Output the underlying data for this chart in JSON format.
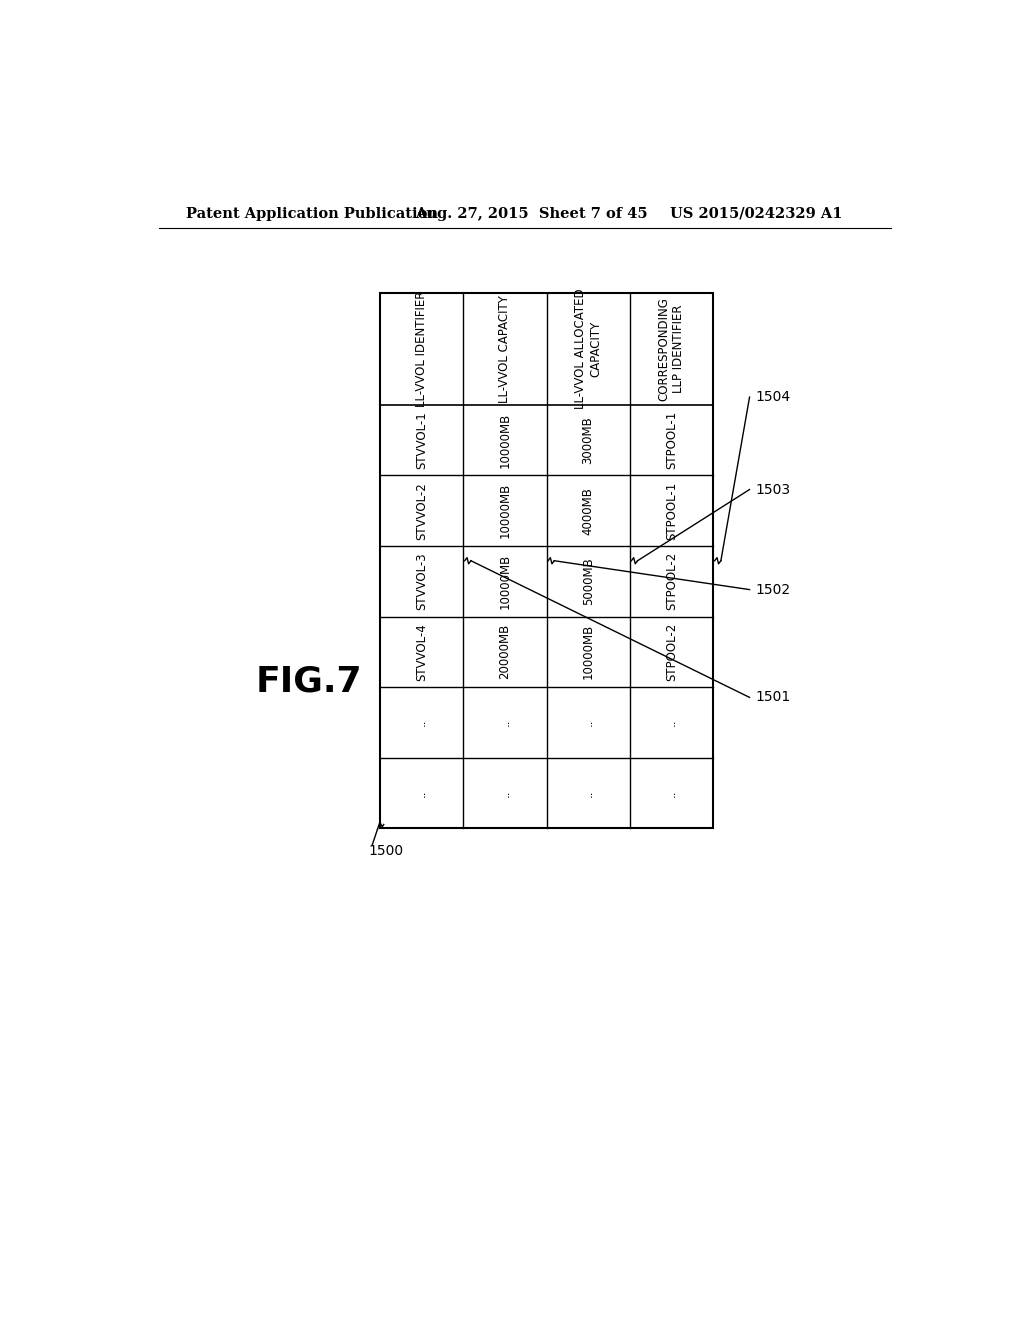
{
  "fig_label": "FIG.7",
  "header_line1": "Patent Application Publication",
  "header_line2": "Aug. 27, 2015  Sheet 7 of 45",
  "header_line3": "US 2015/0242329 A1",
  "col_headers": [
    "LL-VVOL IDENTIFIER",
    "LL-VVOL CAPACITY",
    "LL-VVOL ALLOCATED\nCAPACITY",
    "CORRESPONDING\nLLP IDENTIFIER"
  ],
  "rows": [
    [
      "STVVOL-1",
      "10000MB",
      "3000MB",
      "STPOOL-1"
    ],
    [
      "STVVOL-2",
      "10000MB",
      "4000MB",
      "STPOOL-1"
    ],
    [
      "STVVOL-3",
      "10000MB",
      "5000MB",
      "STPOOL-2"
    ],
    [
      "STVVOL-4",
      "20000MB",
      "10000MB",
      "STPOOL-2"
    ],
    [
      "..",
      "..",
      "..",
      ".."
    ],
    [
      "..",
      "..",
      "..",
      ".."
    ]
  ],
  "col_labels": [
    "1501",
    "1502",
    "1503",
    "1504"
  ],
  "table_label": "1500",
  "background_color": "#ffffff",
  "line_color": "#000000",
  "text_color": "#000000"
}
